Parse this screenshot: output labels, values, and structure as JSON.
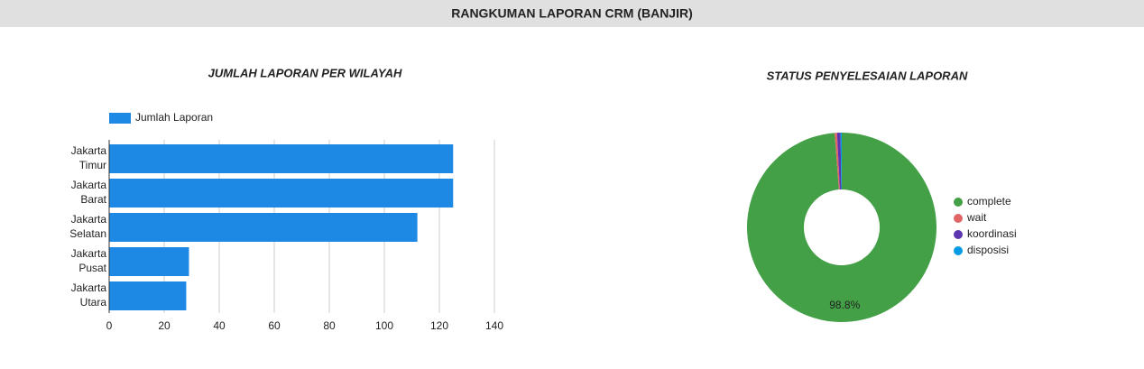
{
  "header": {
    "title": "RANGKUMAN LAPORAN CRM (BANJIR)"
  },
  "chart_data": [
    {
      "type": "hbar",
      "title": "JUMLAH LAPORAN PER WILAYAH",
      "categories": [
        "Jakarta Timur",
        "Jakarta Barat",
        "Jakarta Selatan",
        "Jakarta Pusat",
        "Jakarta Utara"
      ],
      "series": [
        {
          "name": "Jumlah Laporan",
          "color": "#1e88e5",
          "values": [
            125,
            125,
            112,
            29,
            28
          ]
        }
      ],
      "xlim": [
        0,
        140
      ],
      "xticks": [
        0,
        20,
        40,
        60,
        80,
        100,
        120,
        140
      ],
      "grid": true,
      "legend": "top"
    },
    {
      "type": "donut",
      "title": "STATUS PENYELESAIAN LAPORAN",
      "categories": [
        "complete",
        "wait",
        "koordinasi",
        "disposisi"
      ],
      "values": [
        98.8,
        0.4,
        0.6,
        0.2
      ],
      "value_labels": [
        "98.8%",
        null,
        null,
        null
      ],
      "colors": [
        "#43a047",
        "#e06666",
        "#5e35b1",
        "#039be5"
      ],
      "legend": "right"
    }
  ]
}
